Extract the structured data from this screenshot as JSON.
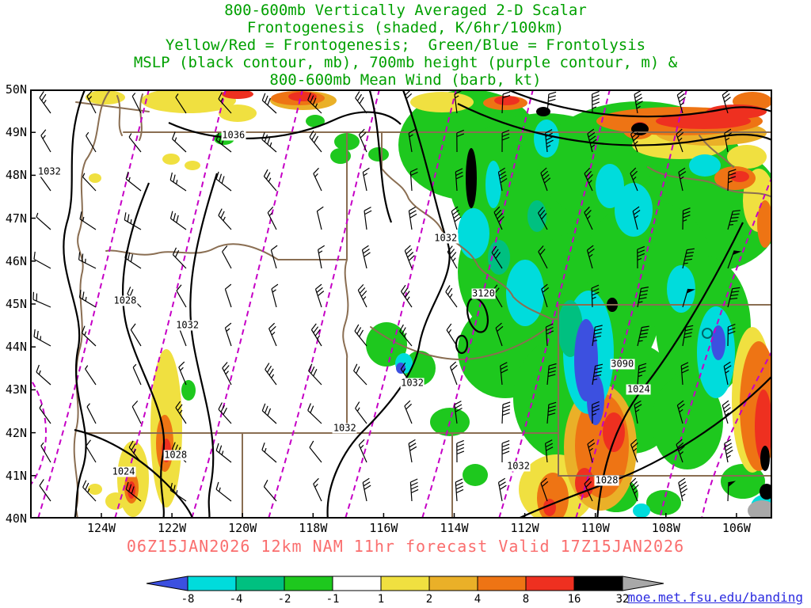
{
  "header": {
    "color": "#00a000",
    "lines": [
      "800-600mb Vertically Averaged 2-D Scalar",
      "Frontogenesis (shaded, K/6hr/100km)",
      "Yellow/Red = Frontogenesis;  Green/Blue = Frontolysis",
      "MSLP (black contour, mb), 700mb height (purple contour, m) &",
      "800-600mb Mean Wind (barb, kt)"
    ]
  },
  "map": {
    "state_border_color": "#8a6e52",
    "mslp_contour_color": "#000000",
    "height_contour_color": "#c600c6",
    "wind_barb_color": "#000000",
    "background": "#ffffff"
  },
  "chart_data": {
    "type": "heatmap",
    "title": "800-600mb Vertically Averaged 2-D Scalar Frontogenesis (shaded, K/6hr/100km)",
    "subtitle": "Yellow/Red = Frontogenesis; Green/Blue = Frontolysis; MSLP (black contour, mb), 700mb height (purple contour, m) & 800-600mb Mean Wind (barb, kt)",
    "x_ticks": [
      "124W",
      "122W",
      "120W",
      "118W",
      "116W",
      "114W",
      "112W",
      "110W",
      "108W",
      "106W"
    ],
    "y_ticks": [
      "50N",
      "49N",
      "48N",
      "47N",
      "46N",
      "45N",
      "44N",
      "43N",
      "42N",
      "41N",
      "40N"
    ],
    "units": {
      "shading": "K/6hr/100km",
      "mslp": "mb",
      "height": "m",
      "wind": "kt"
    },
    "colorbar": {
      "levels": [
        -8,
        -4,
        -2,
        -1,
        1,
        2,
        4,
        8,
        16,
        32
      ],
      "colors": [
        "#3c50e0",
        "#00dcdc",
        "#00c080",
        "#1ec81e",
        "#ffffff",
        "#f0e040",
        "#eab028",
        "#ee7414",
        "#ee3020",
        "#000000",
        "#a8a8a8"
      ]
    },
    "mslp_contours_mb": [
      1024,
      1028,
      1032,
      1036
    ],
    "height_contours_m": [
      3090,
      3120
    ],
    "contour_labels": [
      {
        "text": "1032",
        "field": "mslp",
        "x_pct": 2.6,
        "y_pct": 19.2
      },
      {
        "text": "1036",
        "field": "mslp",
        "x_pct": 27.4,
        "y_pct": 10.7
      },
      {
        "text": "1028",
        "field": "mslp",
        "x_pct": 12.8,
        "y_pct": 49.3
      },
      {
        "text": "1032",
        "field": "mslp",
        "x_pct": 21.2,
        "y_pct": 55.0
      },
      {
        "text": "1024",
        "field": "mslp",
        "x_pct": 12.6,
        "y_pct": 89.1
      },
      {
        "text": "1028",
        "field": "mslp",
        "x_pct": 19.6,
        "y_pct": 85.2
      },
      {
        "text": "1032",
        "field": "mslp",
        "x_pct": 42.4,
        "y_pct": 79.0
      },
      {
        "text": "1032",
        "field": "mslp",
        "x_pct": 51.5,
        "y_pct": 68.5
      },
      {
        "text": "1032",
        "field": "mslp",
        "x_pct": 56.0,
        "y_pct": 34.7
      },
      {
        "text": "3120",
        "field": "700mb_height",
        "x_pct": 61.1,
        "y_pct": 47.6
      },
      {
        "text": "3090",
        "field": "700mb_height",
        "x_pct": 79.8,
        "y_pct": 64.0
      },
      {
        "text": "1024",
        "field": "mslp",
        "x_pct": 82.0,
        "y_pct": 69.9
      },
      {
        "text": "1028",
        "field": "mslp",
        "x_pct": 77.7,
        "y_pct": 91.1
      },
      {
        "text": "1032",
        "field": "mslp",
        "x_pct": 65.8,
        "y_pct": 87.8
      }
    ]
  },
  "footer": {
    "color": "#fa6e6e",
    "text": "06Z15JAN2026 12km NAM 11hr forecast Valid 17Z15JAN2026"
  },
  "link": {
    "color": "#2a2ae0",
    "text": "moe.met.fsu.edu/banding"
  }
}
